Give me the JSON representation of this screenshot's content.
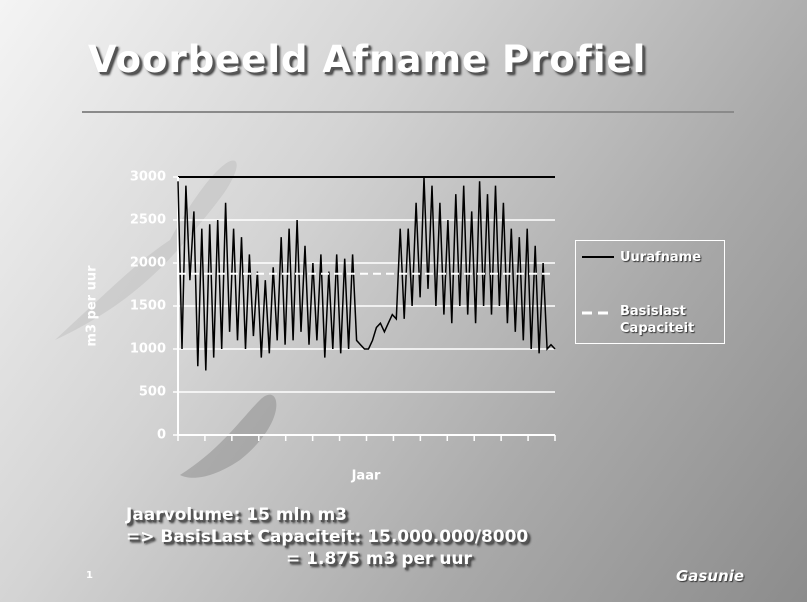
{
  "chart_data": {
    "type": "line",
    "title": "Voorbeeld Afname Profiel",
    "y_label": "m3 per uur",
    "x_label": "Jaar",
    "ylim": [
      0,
      3000
    ],
    "yticks": [
      0,
      500,
      1000,
      1500,
      2000,
      2500,
      3000
    ],
    "grid": true,
    "series": [
      {
        "name": "Uurafname",
        "color": "#000000",
        "values": [
          2950,
          1000,
          2900,
          1800,
          2600,
          800,
          2400,
          750,
          2450,
          900,
          2500,
          1000,
          2700,
          1200,
          2400,
          1100,
          2300,
          1000,
          2100,
          1150,
          1900,
          900,
          1800,
          950,
          1950,
          1100,
          2300,
          1050,
          2400,
          1100,
          2500,
          1200,
          2200,
          1050,
          2000,
          1100,
          2100,
          900,
          1900,
          1000,
          2100,
          950,
          2050,
          1000,
          2100,
          1100,
          1050,
          1000,
          1000,
          1100,
          1250,
          1300,
          1200,
          1300,
          1400,
          1350,
          2400,
          1350,
          2400,
          1500,
          2700,
          1600,
          3000,
          1700,
          2900,
          1500,
          2700,
          1400,
          2500,
          1300,
          2800,
          1500,
          2900,
          1400,
          2600,
          1300,
          2950,
          1500,
          2800,
          1400,
          2900,
          1500,
          2700,
          1300,
          2400,
          1200,
          2300,
          1100,
          2400,
          1000,
          2200,
          950,
          2000,
          1000,
          1050,
          1000
        ]
      },
      {
        "name": "Basislast Capaciteit",
        "color": "#ffffff",
        "dashed": true,
        "value": 1875
      }
    ]
  },
  "notes": [
    "Jaarvolume: 15 mln m3",
    "=> BasisLast Capaciteit: 15.000.000/8000",
    "= 1.875 m3 per uur"
  ],
  "page_number": "1",
  "logo": "Gasunie"
}
